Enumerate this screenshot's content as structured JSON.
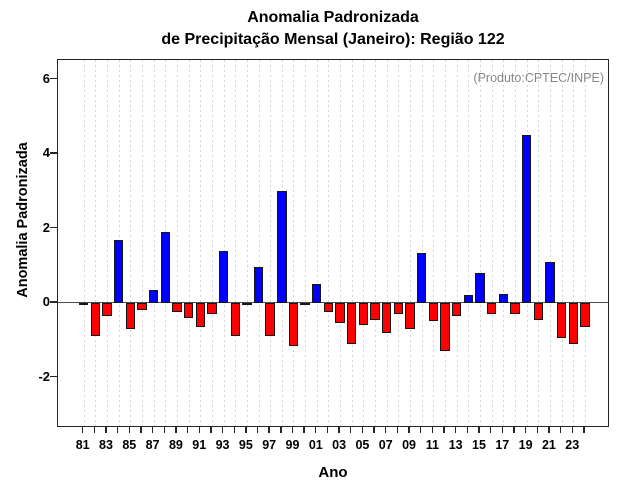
{
  "header": {
    "title_line1": "Anomalia Padronizada",
    "title_line2": "de Precipitação Mensal (Janeiro): Região 122"
  },
  "chart_data": {
    "type": "bar",
    "title": "Anomalia Padronizada de Precipitação Mensal (Janeiro): Região 122",
    "annotation": "(Produto:CPTEC/INPE)",
    "xlabel": "Ano",
    "ylabel": "Anomalia Padronizada",
    "ylim": [
      -3.36,
      6.52
    ],
    "yticks": [
      -2,
      0,
      2,
      4,
      6
    ],
    "ytick_labels": [
      "-2",
      "0",
      "2",
      "4",
      "6"
    ],
    "grid": "vertical-dashed",
    "zero_line": true,
    "legend": "none",
    "categories": [
      "81",
      "82",
      "83",
      "84",
      "85",
      "86",
      "87",
      "88",
      "89",
      "90",
      "91",
      "92",
      "93",
      "94",
      "95",
      "96",
      "97",
      "98",
      "99",
      "00",
      "01",
      "02",
      "03",
      "04",
      "05",
      "06",
      "07",
      "08",
      "09",
      "10",
      "11",
      "12",
      "13",
      "14",
      "15",
      "16",
      "17",
      "18",
      "19",
      "20",
      "21",
      "22",
      "23",
      "24"
    ],
    "x_tick_labels_shown": [
      "81",
      "83",
      "85",
      "87",
      "89",
      "91",
      "93",
      "95",
      "97",
      "99",
      "01",
      "03",
      "05",
      "07",
      "09",
      "11",
      "13",
      "15",
      "17",
      "19",
      "21",
      "23"
    ],
    "values": [
      -0.07,
      -0.9,
      -0.35,
      1.7,
      -0.7,
      -0.2,
      0.35,
      1.9,
      -0.25,
      -0.4,
      -0.65,
      -0.3,
      1.4,
      -0.9,
      -0.05,
      0.95,
      -0.9,
      3.0,
      -1.15,
      -0.05,
      0.5,
      -0.25,
      -0.55,
      -1.1,
      -0.6,
      -0.45,
      -0.8,
      -0.3,
      -0.7,
      1.35,
      -0.5,
      -1.3,
      -0.35,
      0.2,
      0.8,
      -0.3,
      0.25,
      -0.3,
      4.5,
      -0.45,
      1.1,
      -0.95,
      -1.1,
      -0.65
    ],
    "colors": {
      "positive": "#0000ff",
      "negative": "#ff0000",
      "bar_border": "#161616",
      "grid": "#d4d4d4",
      "zero_line": "#4d4d4d",
      "axis": "#252525",
      "annotation_text": "#878787"
    }
  }
}
